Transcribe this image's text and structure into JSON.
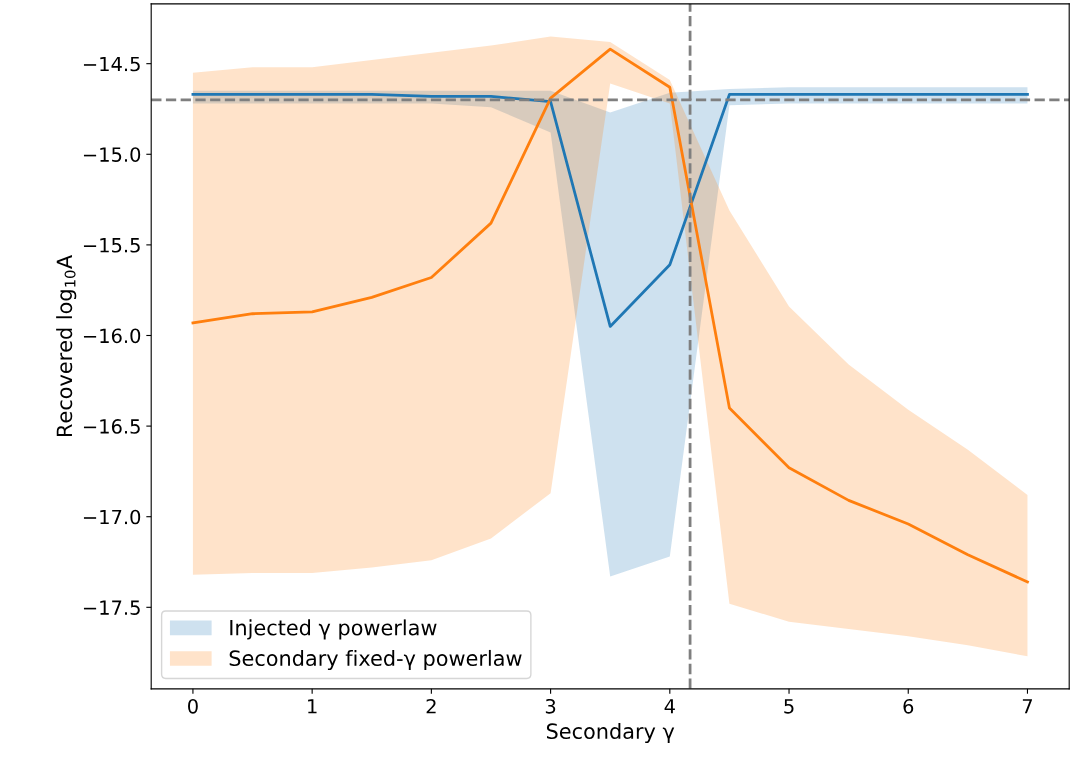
{
  "chart_data": {
    "type": "line",
    "xlabel": "Secondary γ",
    "ylabel": "Recovered log$_{10}$A",
    "x": [
      0,
      0.5,
      1,
      1.5,
      2,
      2.5,
      3,
      3.5,
      4,
      4.5,
      5,
      5.5,
      6,
      6.5,
      7
    ],
    "series": [
      {
        "name": "Injected γ powerlaw",
        "color": "#1f77b4",
        "values": [
          -14.67,
          -14.67,
          -14.67,
          -14.67,
          -14.68,
          -14.68,
          -14.71,
          -15.95,
          -15.61,
          -14.67,
          -14.67,
          -14.67,
          -14.67,
          -14.67,
          -14.67
        ],
        "lower": [
          -14.72,
          -14.72,
          -14.72,
          -14.72,
          -14.72,
          -14.74,
          -14.88,
          -17.33,
          -17.22,
          -14.73,
          -14.72,
          -14.72,
          -14.72,
          -14.72,
          -14.72
        ],
        "upper": [
          -14.65,
          -14.65,
          -14.65,
          -14.65,
          -14.65,
          -14.65,
          -14.65,
          -14.77,
          -14.66,
          -14.64,
          -14.63,
          -14.63,
          -14.63,
          -14.63,
          -14.63
        ]
      },
      {
        "name": "Secondary fixed-γ powerlaw",
        "color": "#ff7f0e",
        "values": [
          -15.93,
          -15.88,
          -15.87,
          -15.79,
          -15.68,
          -15.38,
          -14.69,
          -14.42,
          -14.63,
          -16.4,
          -16.73,
          -16.91,
          -17.04,
          -17.21,
          -17.36
        ],
        "lower": [
          -17.32,
          -17.31,
          -17.31,
          -17.28,
          -17.24,
          -17.12,
          -16.87,
          -14.61,
          -14.72,
          -17.48,
          -17.58,
          -17.62,
          -17.66,
          -17.71,
          -17.77
        ],
        "upper": [
          -14.55,
          -14.52,
          -14.52,
          -14.48,
          -14.44,
          -14.4,
          -14.35,
          -14.38,
          -14.59,
          -15.31,
          -15.84,
          -16.16,
          -16.41,
          -16.63,
          -16.88
        ]
      }
    ],
    "xlim": [
      -0.35,
      7.35
    ],
    "ylim": [
      -17.95,
      -14.17
    ],
    "xticks": [
      0,
      1,
      2,
      3,
      4,
      5,
      6,
      7
    ],
    "yticks": [
      {
        "value": -17.5,
        "label": "−17.5"
      },
      {
        "value": -17,
        "label": "−17.0"
      },
      {
        "value": -16.5,
        "label": "−16.5"
      },
      {
        "value": -16,
        "label": "−16.0"
      },
      {
        "value": -15.5,
        "label": "−15.5"
      },
      {
        "value": -15,
        "label": "−15.0"
      },
      {
        "value": -14.5,
        "label": "−14.5"
      }
    ],
    "ref_lines": [
      {
        "axis": "y",
        "value": -14.7,
        "color": "#7f7f7f",
        "line_style": "dashed"
      },
      {
        "axis": "x",
        "value": 4.17,
        "color": "#7f7f7f",
        "line_style": "dashed"
      }
    ],
    "legend": "lower left",
    "grid": false,
    "marker": "none",
    "line_style": "solid"
  }
}
